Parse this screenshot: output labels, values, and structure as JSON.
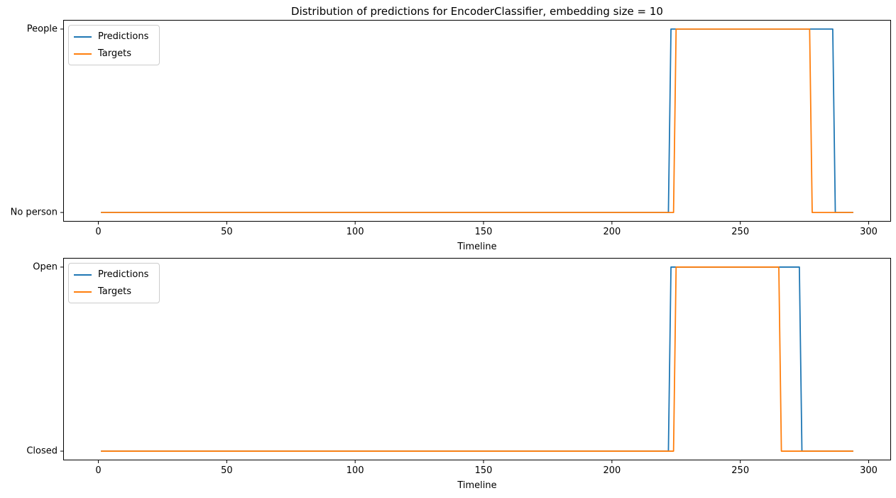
{
  "figure": {
    "title": "Distribution of predictions for EncoderClassifier, embedding size = 10"
  },
  "colors": {
    "predictions": "#1f77b4",
    "targets": "#ff7f0e",
    "axis": "#000000",
    "legend_border": "#cccccc"
  },
  "chart_data": [
    {
      "type": "line",
      "subplot": "top",
      "xlabel": "Timeline",
      "ylabel": "",
      "x_ticks": [
        0,
        50,
        100,
        150,
        200,
        250,
        300
      ],
      "y_ticks": [
        {
          "value": 0,
          "label": "No person"
        },
        {
          "value": 1,
          "label": "People"
        }
      ],
      "xlim": [
        -13.7,
        308.7
      ],
      "ylim": [
        -0.05,
        1.05
      ],
      "grid": false,
      "legend_position": "upper-left",
      "series": [
        {
          "name": "Predictions",
          "color": "#1f77b4",
          "steps": [
            {
              "from": 1,
              "to": 222,
              "value": 0
            },
            {
              "from": 223,
              "to": 286,
              "value": 1
            },
            {
              "from": 287,
              "to": 294,
              "value": 0
            }
          ]
        },
        {
          "name": "Targets",
          "color": "#ff7f0e",
          "steps": [
            {
              "from": 1,
              "to": 224,
              "value": 0
            },
            {
              "from": 225,
              "to": 277,
              "value": 1
            },
            {
              "from": 278,
              "to": 294,
              "value": 0
            }
          ]
        }
      ]
    },
    {
      "type": "line",
      "subplot": "bottom",
      "xlabel": "Timeline",
      "ylabel": "",
      "x_ticks": [
        0,
        50,
        100,
        150,
        200,
        250,
        300
      ],
      "y_ticks": [
        {
          "value": 0,
          "label": "Closed"
        },
        {
          "value": 1,
          "label": "Open"
        }
      ],
      "xlim": [
        -13.7,
        308.7
      ],
      "ylim": [
        -0.05,
        1.05
      ],
      "grid": false,
      "legend_position": "upper-left",
      "series": [
        {
          "name": "Predictions",
          "color": "#1f77b4",
          "steps": [
            {
              "from": 1,
              "to": 222,
              "value": 0
            },
            {
              "from": 223,
              "to": 273,
              "value": 1
            },
            {
              "from": 274,
              "to": 294,
              "value": 0
            }
          ]
        },
        {
          "name": "Targets",
          "color": "#ff7f0e",
          "steps": [
            {
              "from": 1,
              "to": 224,
              "value": 0
            },
            {
              "from": 225,
              "to": 265,
              "value": 1
            },
            {
              "from": 266,
              "to": 294,
              "value": 0
            }
          ]
        }
      ]
    }
  ]
}
